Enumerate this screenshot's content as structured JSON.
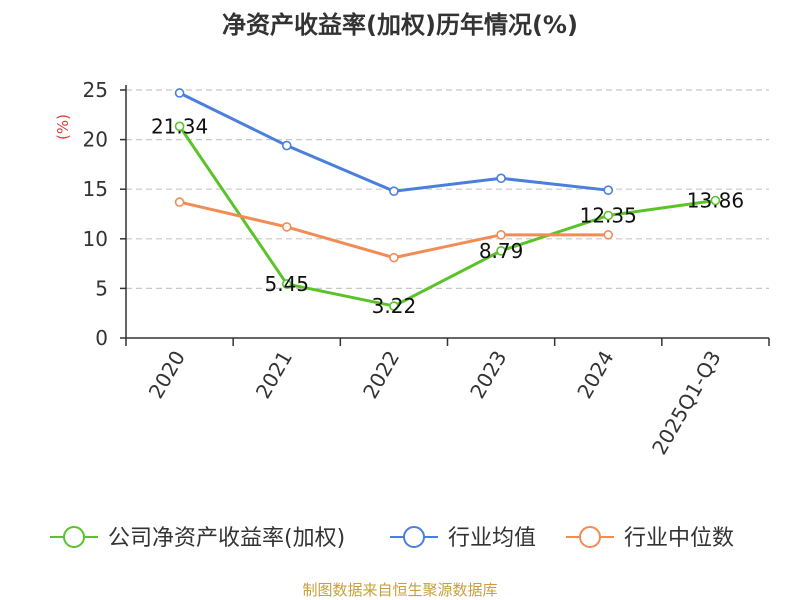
{
  "chart_data": {
    "type": "line",
    "title": "净资产收益率(加权)历年情况(%)",
    "ylabel": "(%)",
    "xlabel": "",
    "ylim": [
      0,
      25
    ],
    "yticks": [
      0,
      5,
      10,
      15,
      20,
      25
    ],
    "grid": true,
    "legend_position": "bottom",
    "categories": [
      "2020",
      "2021",
      "2022",
      "2023",
      "2024",
      "2025Q1-Q3"
    ],
    "series": [
      {
        "name": "公司净资产收益率(加权)",
        "color": "#5ac328",
        "values": [
          21.34,
          5.45,
          3.22,
          8.79,
          12.35,
          13.86
        ],
        "labels": [
          "21.34",
          "5.45",
          "3.22",
          "8.79",
          "12.35",
          "13.86"
        ]
      },
      {
        "name": "行业均值",
        "color": "#4a7fdc",
        "values": [
          24.7,
          19.4,
          14.8,
          16.1,
          14.9,
          null
        ]
      },
      {
        "name": "行业中位数",
        "color": "#f28c56",
        "values": [
          13.7,
          11.2,
          8.1,
          10.4,
          10.4,
          null
        ]
      }
    ],
    "source": "制图数据来自恒生聚源数据库",
    "source_color": "#c8a03a",
    "ylabel_color": "#e23b3b"
  }
}
